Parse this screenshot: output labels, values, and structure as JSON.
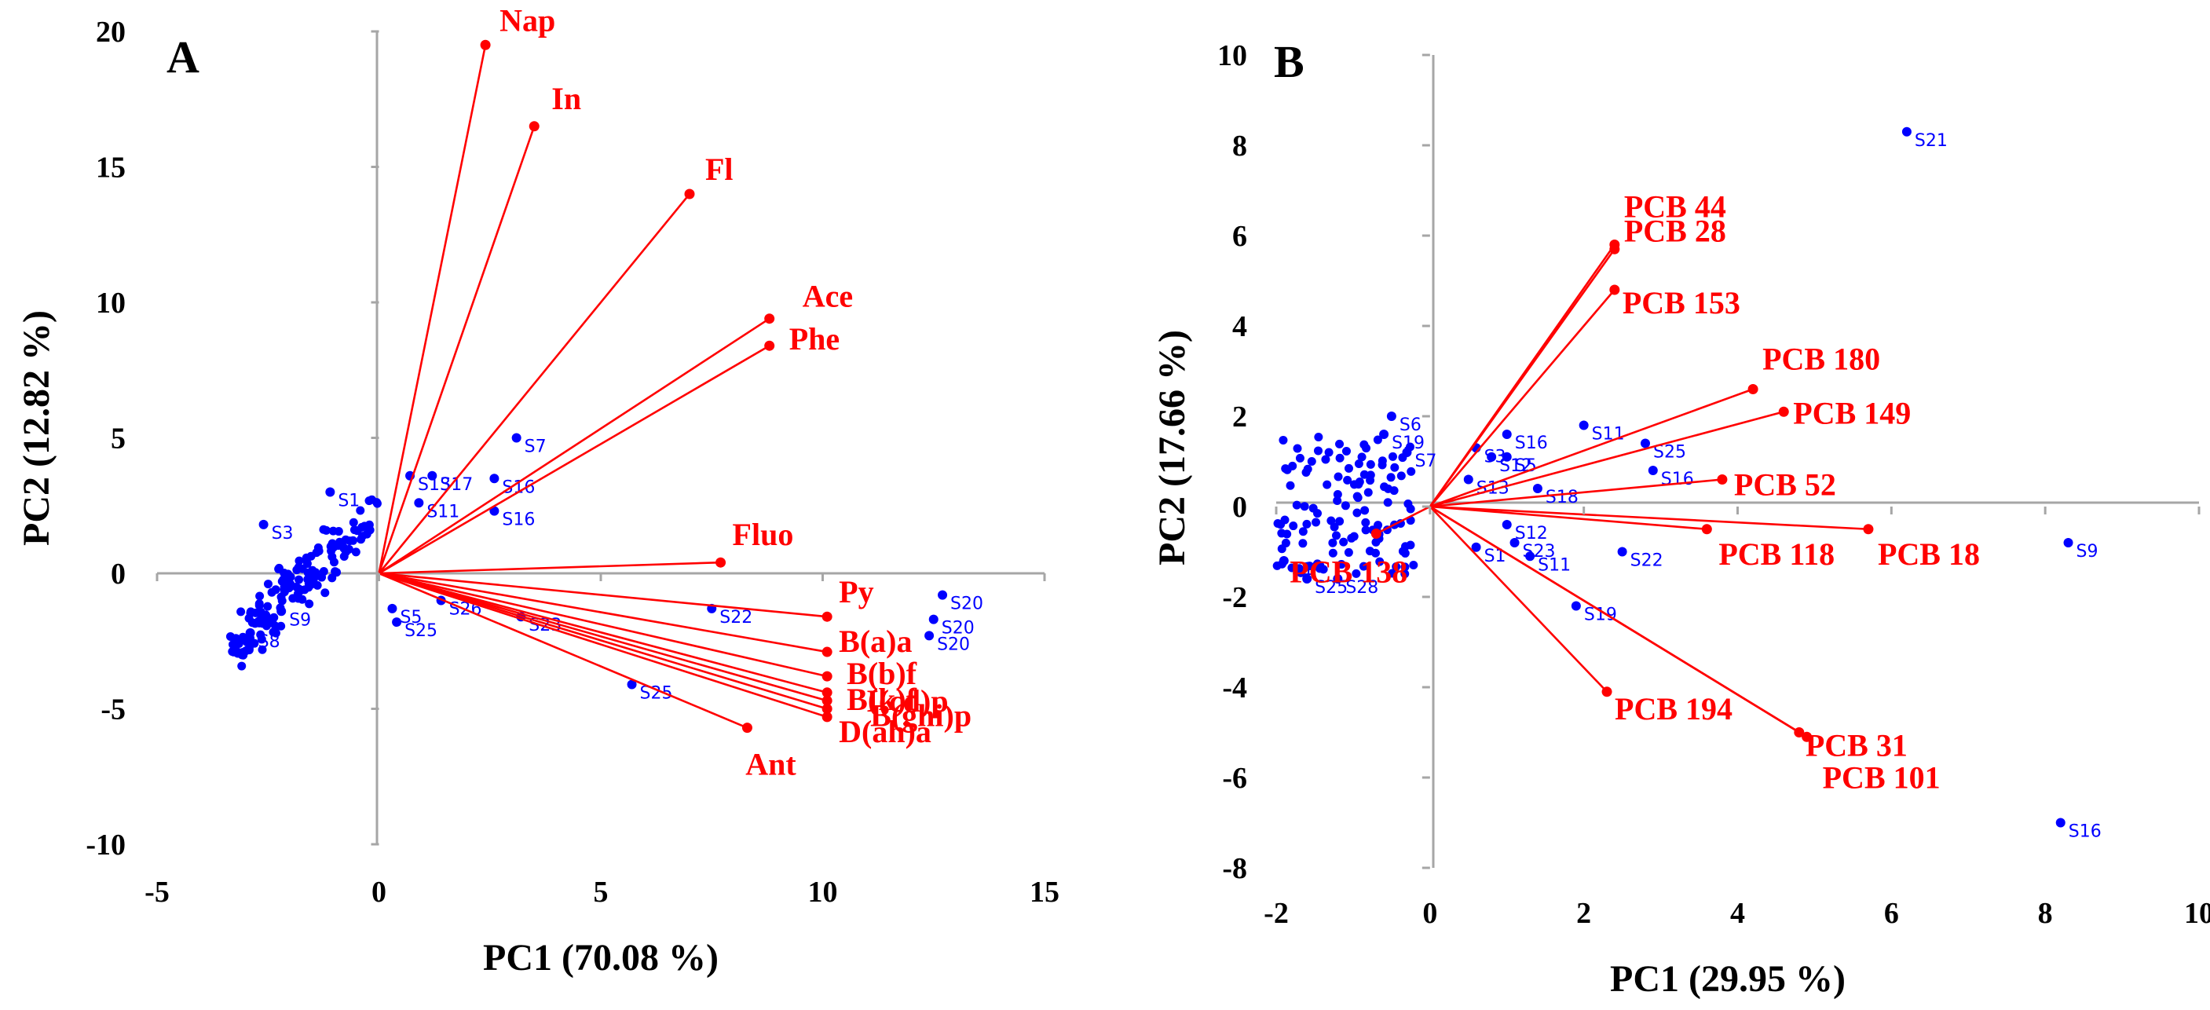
{
  "colors": {
    "loading": "#ff0000",
    "score": "#0000ff",
    "axis": "#a6a6a6",
    "text": "#000000"
  },
  "chart_data": [
    {
      "type": "scatter",
      "panel": "A",
      "title": "",
      "xlabel": "PC1 (70.08 %)",
      "ylabel": "PC2 (12.82 %)",
      "xlim": [
        -5,
        15
      ],
      "ylim": [
        -10,
        20
      ],
      "xticks": [
        -5,
        0,
        5,
        10,
        15
      ],
      "yticks": [
        -10,
        -5,
        0,
        5,
        10,
        15,
        20
      ],
      "loadings": [
        {
          "label": "Nap",
          "x": 2.4,
          "y": 19.5
        },
        {
          "label": "In",
          "x": 3.5,
          "y": 16.5
        },
        {
          "label": "Fl",
          "x": 7.0,
          "y": 14.0
        },
        {
          "label": "Ace",
          "x": 8.8,
          "y": 9.4
        },
        {
          "label": "Phe",
          "x": 8.8,
          "y": 8.4
        },
        {
          "label": "Fluo",
          "x": 7.7,
          "y": 0.4
        },
        {
          "label": "Py",
          "x": 10.1,
          "y": -1.6
        },
        {
          "label": "B(a)a",
          "x": 10.1,
          "y": -2.9
        },
        {
          "label": "B(b)f",
          "x": 10.1,
          "y": -3.8
        },
        {
          "label": "B(k)f",
          "x": 10.1,
          "y": -4.4
        },
        {
          "label": "I(cd)p",
          "x": 10.1,
          "y": -4.7
        },
        {
          "label": "B(ghi)p",
          "x": 10.1,
          "y": -5.0
        },
        {
          "label": "D(ah)a",
          "x": 10.1,
          "y": -5.3
        },
        {
          "label": "Ant",
          "x": 8.3,
          "y": -5.7
        }
      ],
      "scores": [
        {
          "label": "S1",
          "x": -1.1,
          "y": 3.0
        },
        {
          "label": "S13",
          "x": 0.7,
          "y": 3.6
        },
        {
          "label": "S17",
          "x": 1.2,
          "y": 3.6
        },
        {
          "label": "S11",
          "x": 0.9,
          "y": 2.6
        },
        {
          "label": "S7",
          "x": 3.1,
          "y": 5.0
        },
        {
          "label": "S16",
          "x": 2.6,
          "y": 3.5
        },
        {
          "label": "S16",
          "x": 2.6,
          "y": 2.3
        },
        {
          "label": "S5",
          "x": 0.3,
          "y": -1.3
        },
        {
          "label": "S25",
          "x": 0.4,
          "y": -1.8
        },
        {
          "label": "S26",
          "x": 1.4,
          "y": -1.0
        },
        {
          "label": "S23",
          "x": 3.2,
          "y": -1.6
        },
        {
          "label": "S22",
          "x": 7.5,
          "y": -1.3
        },
        {
          "label": "S25",
          "x": 5.7,
          "y": -4.1
        },
        {
          "label": "S20",
          "x": 12.7,
          "y": -0.8
        },
        {
          "label": "S20",
          "x": 12.5,
          "y": -1.7
        },
        {
          "label": "S20",
          "x": 12.4,
          "y": -2.3
        },
        {
          "label": "S3",
          "x": -2.6,
          "y": 1.8
        },
        {
          "label": "S8",
          "x": -2.9,
          "y": -2.2
        },
        {
          "label": "S9",
          "x": -2.2,
          "y": -1.4
        }
      ]
    },
    {
      "type": "scatter",
      "panel": "B",
      "title": "",
      "xlabel": "PC1 (29.95 %)",
      "ylabel": "PC2 (17.66 %)",
      "xlim": [
        -2,
        10
      ],
      "ylim": [
        -8,
        10
      ],
      "xticks": [
        -2,
        0,
        2,
        4,
        6,
        8,
        10
      ],
      "yticks": [
        -8,
        -6,
        -4,
        -2,
        0,
        2,
        4,
        6,
        8,
        10
      ],
      "loadings": [
        {
          "label": "PCB 44",
          "x": 2.4,
          "y": 5.8
        },
        {
          "label": "PCB 28",
          "x": 2.4,
          "y": 5.7
        },
        {
          "label": "PCB 153",
          "x": 2.4,
          "y": 4.8
        },
        {
          "label": "PCB 180",
          "x": 4.2,
          "y": 2.6
        },
        {
          "label": "PCB 149",
          "x": 4.6,
          "y": 2.1
        },
        {
          "label": "PCB 52",
          "x": 3.8,
          "y": 0.6
        },
        {
          "label": "PCB 118",
          "x": 3.6,
          "y": -0.5
        },
        {
          "label": "PCB 18",
          "x": 5.7,
          "y": -0.5
        },
        {
          "label": "PCB 194",
          "x": 2.3,
          "y": -4.1
        },
        {
          "label": "PCB 31",
          "x": 4.8,
          "y": -5.0
        },
        {
          "label": "PCB 101",
          "x": 4.9,
          "y": -5.1
        },
        {
          "label": "PCB 138",
          "x": -0.7,
          "y": -0.6
        }
      ],
      "scores": [
        {
          "label": "S21",
          "x": 6.2,
          "y": 8.3
        },
        {
          "label": "S9",
          "x": 8.3,
          "y": -0.8
        },
        {
          "label": "S16",
          "x": 8.2,
          "y": -7.0
        },
        {
          "label": "S11",
          "x": 2.0,
          "y": 1.8
        },
        {
          "label": "S25",
          "x": 2.8,
          "y": 1.4
        },
        {
          "label": "S16",
          "x": 2.9,
          "y": 0.8
        },
        {
          "label": "S18",
          "x": 1.4,
          "y": 0.4
        },
        {
          "label": "S16",
          "x": 1.0,
          "y": 1.6
        },
        {
          "label": "S5",
          "x": 1.0,
          "y": 1.1
        },
        {
          "label": "S12",
          "x": 0.8,
          "y": 1.1
        },
        {
          "label": "S3",
          "x": 0.6,
          "y": 1.3
        },
        {
          "label": "S13",
          "x": 0.5,
          "y": 0.6
        },
        {
          "label": "S7",
          "x": -0.3,
          "y": 1.2
        },
        {
          "label": "S6",
          "x": -0.5,
          "y": 2.0
        },
        {
          "label": "S19",
          "x": -0.6,
          "y": 1.6
        },
        {
          "label": "S12",
          "x": 1.0,
          "y": -0.4
        },
        {
          "label": "S11",
          "x": 1.3,
          "y": -1.1
        },
        {
          "label": "S22",
          "x": 2.5,
          "y": -1.0
        },
        {
          "label": "S1",
          "x": 0.6,
          "y": -0.9
        },
        {
          "label": "S23",
          "x": 1.1,
          "y": -0.8
        },
        {
          "label": "S19",
          "x": 1.9,
          "y": -2.2
        },
        {
          "label": "S1",
          "x": -1.9,
          "y": -1.2
        },
        {
          "label": "S25",
          "x": -1.6,
          "y": -1.6
        },
        {
          "label": "S28",
          "x": -1.2,
          "y": -1.6
        }
      ]
    }
  ]
}
